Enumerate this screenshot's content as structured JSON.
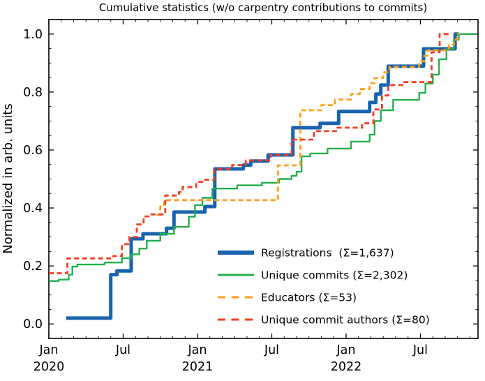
{
  "chart_data": {
    "type": "line",
    "subtype": "cumulative-step",
    "title": "Cumulative statistics (w/o carpentry contributions to commits)",
    "xlabel": "",
    "ylabel": "Normalized in arb. units",
    "grid": false,
    "legend_position": "lower right",
    "legend_frame": false,
    "x_axis": {
      "unit": "months since Jan 2020",
      "range_months": [
        0,
        34.65
      ],
      "major_ticks": [
        {
          "m": 0,
          "label": "Jan",
          "year": "2020"
        },
        {
          "m": 6,
          "label": "Jul",
          "year": ""
        },
        {
          "m": 12,
          "label": "Jan",
          "year": "2021"
        },
        {
          "m": 18,
          "label": "Jul",
          "year": ""
        },
        {
          "m": 24,
          "label": "Jan",
          "year": "2022"
        },
        {
          "m": 30,
          "label": "Jul",
          "year": ""
        }
      ],
      "minor_tick_every_months": 1
    },
    "y_axis": {
      "range": [
        -0.05,
        1.05
      ],
      "major_ticks": [
        {
          "v": 0.0,
          "label": "0.0"
        },
        {
          "v": 0.2,
          "label": "0.2"
        },
        {
          "v": 0.4,
          "label": "0.4"
        },
        {
          "v": 0.6,
          "label": "0.6"
        },
        {
          "v": 0.8,
          "label": "0.8"
        },
        {
          "v": 1.0,
          "label": "1.0"
        }
      ],
      "minor_tick_step": 0.05
    },
    "series": [
      {
        "name": "registrations",
        "label": "Registrations  (Σ=1,637)",
        "total": 1637,
        "color": "#1763b0",
        "style": "solid",
        "width": 5,
        "end_month": 33.1,
        "points": [
          [
            1.4,
            0.02
          ],
          [
            5.0,
            0.17
          ],
          [
            5.5,
            0.183
          ],
          [
            6.65,
            0.294
          ],
          [
            7.6,
            0.311
          ],
          [
            9.5,
            0.33
          ],
          [
            10.1,
            0.386
          ],
          [
            12.6,
            0.405
          ],
          [
            13.4,
            0.535
          ],
          [
            15.7,
            0.548
          ],
          [
            16.3,
            0.562
          ],
          [
            17.7,
            0.583
          ],
          [
            19.7,
            0.677
          ],
          [
            21.9,
            0.692
          ],
          [
            23.4,
            0.733
          ],
          [
            25.9,
            0.764
          ],
          [
            26.4,
            0.793
          ],
          [
            26.8,
            0.824
          ],
          [
            27.4,
            0.889
          ],
          [
            30.25,
            0.949
          ],
          [
            32.8,
            1.0
          ]
        ]
      },
      {
        "name": "unique-commits",
        "label": "Unique commits (Σ=2,302)",
        "total": 2302,
        "color": "#21af4b",
        "style": "solid",
        "width": 2.4,
        "end_month": 34.5,
        "points": [
          [
            0,
            0.148
          ],
          [
            0.8,
            0.153
          ],
          [
            1.6,
            0.17
          ],
          [
            1.9,
            0.198
          ],
          [
            2.3,
            0.205
          ],
          [
            4.5,
            0.212
          ],
          [
            5.9,
            0.227
          ],
          [
            6.65,
            0.24
          ],
          [
            7.3,
            0.26
          ],
          [
            7.9,
            0.287
          ],
          [
            9.0,
            0.311
          ],
          [
            10.1,
            0.335
          ],
          [
            11.3,
            0.37
          ],
          [
            11.8,
            0.41
          ],
          [
            12.4,
            0.435
          ],
          [
            13.2,
            0.467
          ],
          [
            15.2,
            0.478
          ],
          [
            17.2,
            0.487
          ],
          [
            18.6,
            0.5
          ],
          [
            19.6,
            0.511
          ],
          [
            20.0,
            0.525
          ],
          [
            20.4,
            0.578
          ],
          [
            21.1,
            0.588
          ],
          [
            22.5,
            0.605
          ],
          [
            24.4,
            0.629
          ],
          [
            25.9,
            0.653
          ],
          [
            26.3,
            0.7
          ],
          [
            26.8,
            0.737
          ],
          [
            27.8,
            0.773
          ],
          [
            29.9,
            0.797
          ],
          [
            30.4,
            0.829
          ],
          [
            31.0,
            0.86
          ],
          [
            31.5,
            0.913
          ],
          [
            32.1,
            0.949
          ],
          [
            32.7,
            0.98
          ],
          [
            33.1,
            1.0
          ]
        ]
      },
      {
        "name": "educators",
        "label": "Educators (Σ=53)",
        "total": 53,
        "color": "#ff9f1c",
        "style": "dashed",
        "width": 2.8,
        "end_month": 33.15,
        "points": [
          [
            8.7,
            0.377
          ],
          [
            9.0,
            0.405
          ],
          [
            9.3,
            0.427
          ],
          [
            18.5,
            0.547
          ],
          [
            20.3,
            0.737
          ],
          [
            22.0,
            0.755
          ],
          [
            23.1,
            0.774
          ],
          [
            24.4,
            0.793
          ],
          [
            25.1,
            0.81
          ],
          [
            25.9,
            0.83
          ],
          [
            26.3,
            0.848
          ],
          [
            27.0,
            0.868
          ],
          [
            27.5,
            0.887
          ],
          [
            29.9,
            0.906
          ],
          [
            30.3,
            0.925
          ],
          [
            30.55,
            0.944
          ],
          [
            32.3,
            0.963
          ],
          [
            32.7,
            0.981
          ],
          [
            33.0,
            1.0
          ]
        ]
      },
      {
        "name": "unique-commit-authors",
        "label": "Unique commit authors (Σ=80)",
        "total": 80,
        "color": "#f43d1d",
        "style": "dashed",
        "width": 2.8,
        "end_month": 32.5,
        "points": [
          [
            0,
            0.175
          ],
          [
            1.5,
            0.226
          ],
          [
            5.2,
            0.234
          ],
          [
            5.9,
            0.275
          ],
          [
            6.5,
            0.3
          ],
          [
            7.1,
            0.343
          ],
          [
            7.65,
            0.371
          ],
          [
            8.2,
            0.378
          ],
          [
            9.4,
            0.443
          ],
          [
            10.5,
            0.455
          ],
          [
            10.8,
            0.472
          ],
          [
            11.9,
            0.49
          ],
          [
            12.55,
            0.497
          ],
          [
            13.35,
            0.535
          ],
          [
            14.8,
            0.548
          ],
          [
            15.9,
            0.564
          ],
          [
            17.9,
            0.583
          ],
          [
            19.6,
            0.636
          ],
          [
            21.4,
            0.665
          ],
          [
            23.3,
            0.677
          ],
          [
            25.3,
            0.692
          ],
          [
            26.2,
            0.74
          ],
          [
            26.9,
            0.788
          ],
          [
            27.4,
            0.824
          ],
          [
            28.7,
            0.834
          ],
          [
            30.9,
            0.937
          ],
          [
            31.55,
            1.0
          ]
        ]
      }
    ]
  }
}
